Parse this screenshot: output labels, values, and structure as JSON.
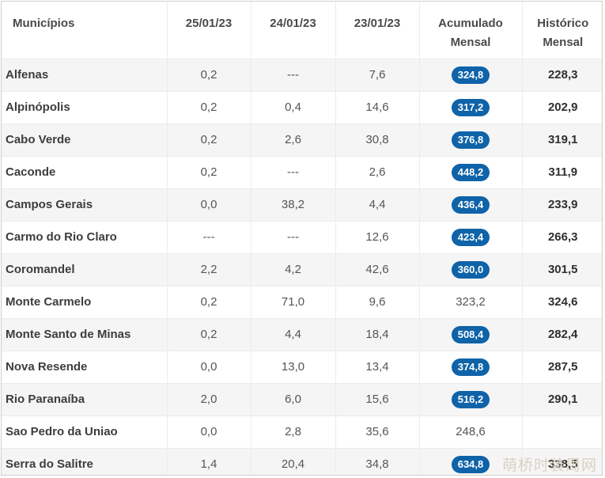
{
  "table": {
    "headers": {
      "municipio": "Municípios",
      "d1": "25/01/23",
      "d2": "24/01/23",
      "d3": "23/01/23",
      "acumulado_l1": "Acumulado",
      "acumulado_l2": "Mensal",
      "historico_l1": "Histórico",
      "historico_l2": "Mensal"
    },
    "rows": [
      {
        "name": "Alfenas",
        "d1": "0,2",
        "d2": "---",
        "d3": "7,6",
        "acumulado": "324,8",
        "historico": "228,3",
        "highlight": true
      },
      {
        "name": "Alpinópolis",
        "d1": "0,2",
        "d2": "0,4",
        "d3": "14,6",
        "acumulado": "317,2",
        "historico": "202,9",
        "highlight": true
      },
      {
        "name": "Cabo Verde",
        "d1": "0,2",
        "d2": "2,6",
        "d3": "30,8",
        "acumulado": "376,8",
        "historico": "319,1",
        "highlight": true
      },
      {
        "name": "Caconde",
        "d1": "0,2",
        "d2": "---",
        "d3": "2,6",
        "acumulado": "448,2",
        "historico": "311,9",
        "highlight": true
      },
      {
        "name": "Campos Gerais",
        "d1": "0,0",
        "d2": "38,2",
        "d3": "4,4",
        "acumulado": "436,4",
        "historico": "233,9",
        "highlight": true
      },
      {
        "name": "Carmo do Rio Claro",
        "d1": "---",
        "d2": "---",
        "d3": "12,6",
        "acumulado": "423,4",
        "historico": "266,3",
        "highlight": true
      },
      {
        "name": "Coromandel",
        "d1": "2,2",
        "d2": "4,2",
        "d3": "42,6",
        "acumulado": "360,0",
        "historico": "301,5",
        "highlight": true
      },
      {
        "name": "Monte Carmelo",
        "d1": "0,2",
        "d2": "71,0",
        "d3": "9,6",
        "acumulado": "323,2",
        "historico": "324,6",
        "highlight": false
      },
      {
        "name": "Monte Santo de Minas",
        "d1": "0,2",
        "d2": "4,4",
        "d3": "18,4",
        "acumulado": "508,4",
        "historico": "282,4",
        "highlight": true
      },
      {
        "name": "Nova Resende",
        "d1": "0,0",
        "d2": "13,0",
        "d3": "13,4",
        "acumulado": "374,8",
        "historico": "287,5",
        "highlight": true
      },
      {
        "name": "Rio Paranaíba",
        "d1": "2,0",
        "d2": "6,0",
        "d3": "15,6",
        "acumulado": "516,2",
        "historico": "290,1",
        "highlight": true
      },
      {
        "name": "Sao Pedro da Uniao",
        "d1": "0,0",
        "d2": "2,8",
        "d3": "35,6",
        "acumulado": "248,6",
        "historico": "",
        "highlight": false
      },
      {
        "name": "Serra do Salitre",
        "d1": "1,4",
        "d2": "20,4",
        "d3": "34,8",
        "acumulado": "634,8",
        "historico": "338,5",
        "highlight": true
      }
    ],
    "colors": {
      "highlight_pill": "#0f63a8",
      "stripe": "#f5f5f5"
    }
  },
  "watermark": "萌桥时装周网"
}
